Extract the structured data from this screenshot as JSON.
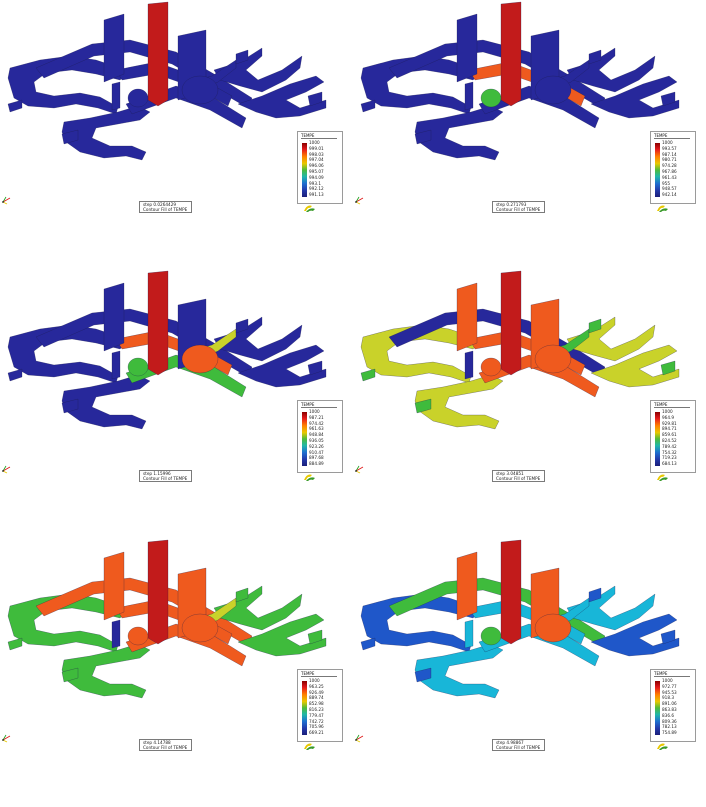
{
  "colors": {
    "cold": "#27289b",
    "hot": "#c21b1b",
    "orange": "#ef5a1e",
    "yellow": "#c9d22a",
    "green": "#3fbb3c",
    "cyan": "#18b6d8",
    "blue": "#1f57c9"
  },
  "panels": [
    {
      "legend_title": "TEMPE",
      "legend_values": [
        "1000",
        "999.01",
        "998.03",
        "997.04",
        "996.06",
        "995.07",
        "994.09",
        "993.1",
        "992.12",
        "991.13"
      ],
      "caption_line1": "step 0.0264429",
      "caption_line2": "Contour Fill of TEMPE"
    },
    {
      "legend_title": "TEMPE",
      "legend_values": [
        "1000",
        "993.57",
        "987.14",
        "980.71",
        "974.28",
        "967.86",
        "961.43",
        "955",
        "948.57",
        "942.14"
      ],
      "caption_line1": "step 0.271793",
      "caption_line2": "Contour Fill of TEMPE"
    },
    {
      "legend_title": "TEMPE",
      "legend_values": [
        "1000",
        "987.21",
        "974.42",
        "961.63",
        "948.84",
        "936.05",
        "923.26",
        "910.47",
        "897.68",
        "884.89"
      ],
      "caption_line1": "step 1.15996",
      "caption_line2": "Contour Fill of TEMPE"
    },
    {
      "legend_title": "TEMPE",
      "legend_values": [
        "1000",
        "964.9",
        "929.81",
        "894.71",
        "859.61",
        "824.52",
        "789.42",
        "754.32",
        "719.23",
        "684.13"
      ],
      "caption_line1": "step 3.04851",
      "caption_line2": "Contour Fill of TEMPE"
    },
    {
      "legend_title": "TEMPE",
      "legend_values": [
        "1000",
        "963.25",
        "926.49",
        "889.74",
        "852.98",
        "816.23",
        "779.47",
        "742.72",
        "705.96",
        "669.21"
      ],
      "caption_line1": "step 4.14788",
      "caption_line2": "Contour Fill of TEMPE"
    },
    {
      "legend_title": "TEMPE",
      "legend_values": [
        "1000",
        "972.77",
        "945.53",
        "918.3",
        "891.06",
        "863.83",
        "836.6",
        "809.36",
        "782.13",
        "754.89"
      ],
      "caption_line1": "step 4.98867",
      "caption_line2": "Contour Fill of TEMPE"
    }
  ]
}
